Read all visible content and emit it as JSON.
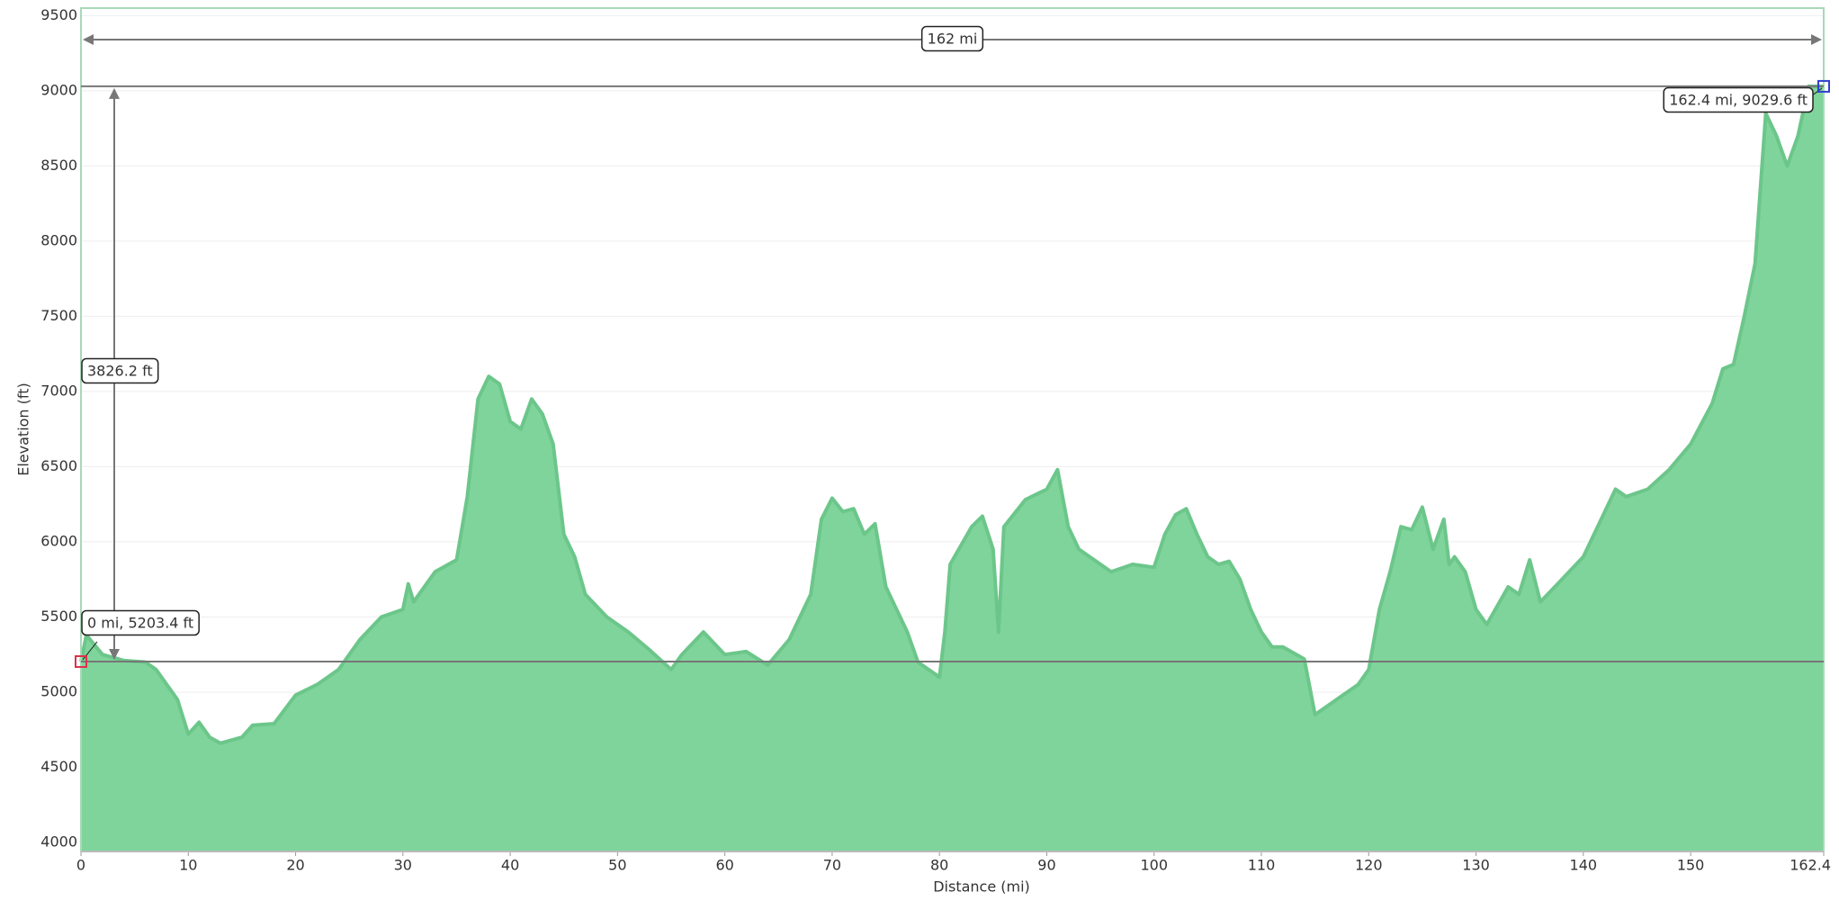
{
  "chart_data": {
    "type": "area",
    "x_label": "Distance   (mi)",
    "y_label": "Elevation (ft)",
    "color": "#7fd49b",
    "line_color": "#6cc68a",
    "x": [
      0,
      0.5,
      2,
      4,
      6,
      7,
      9,
      10,
      11,
      12,
      13,
      15,
      16,
      18,
      20,
      22,
      24,
      26,
      28,
      30,
      30.5,
      31,
      33,
      35,
      36,
      37,
      38,
      39,
      40,
      41,
      42,
      43,
      44,
      45,
      46,
      47,
      49,
      51,
      53,
      55,
      56,
      58,
      60,
      62,
      64,
      66,
      68,
      69,
      70,
      71,
      72,
      73,
      74,
      75,
      77,
      78,
      80,
      80.5,
      81,
      83,
      84,
      85,
      85.5,
      86,
      88,
      90,
      91,
      92,
      93,
      94,
      96,
      98,
      100,
      101,
      102,
      103,
      104,
      105,
      106,
      107,
      108,
      109,
      110,
      111,
      112,
      114,
      115,
      117,
      119,
      120,
      121,
      122,
      123,
      124,
      125,
      126,
      127,
      127.5,
      128,
      129,
      130,
      131,
      133,
      134,
      135,
      136,
      138,
      140,
      142,
      143,
      144,
      146,
      148,
      150,
      152,
      153,
      154,
      155,
      156,
      157,
      158,
      159,
      160,
      161,
      162.4
    ],
    "values": [
      5203.4,
      5380,
      5250,
      5210,
      5200,
      5150,
      4950,
      4720,
      4800,
      4700,
      4660,
      4700,
      4780,
      4790,
      4980,
      5050,
      5150,
      5350,
      5500,
      5550,
      5720,
      5600,
      5800,
      5880,
      6300,
      6950,
      7100,
      7050,
      6800,
      6750,
      6950,
      6850,
      6650,
      6050,
      5900,
      5650,
      5500,
      5400,
      5280,
      5150,
      5250,
      5400,
      5250,
      5270,
      5180,
      5350,
      5650,
      6150,
      6290,
      6200,
      6220,
      6050,
      6120,
      5700,
      5400,
      5200,
      5100,
      5400,
      5850,
      6100,
      6170,
      5950,
      5400,
      6100,
      6280,
      6350,
      6480,
      6100,
      5950,
      5900,
      5800,
      5850,
      5830,
      6050,
      6180,
      6220,
      6050,
      5900,
      5850,
      5870,
      5750,
      5550,
      5400,
      5300,
      5300,
      5220,
      4850,
      4950,
      5050,
      5150,
      5550,
      5800,
      6100,
      6080,
      6230,
      5950,
      6150,
      5850,
      5900,
      5800,
      5550,
      5450,
      5700,
      5650,
      5880,
      5600,
      5750,
      5900,
      6200,
      6350,
      6300,
      6350,
      6480,
      6650,
      6920,
      7150,
      7180,
      7500,
      7850,
      8850,
      8700,
      8500,
      8700,
      9030,
      9029.6
    ],
    "xlim": [
      0,
      162.4
    ],
    "ylim": [
      3940,
      9550
    ],
    "xticks": [
      0,
      10,
      20,
      30,
      40,
      50,
      60,
      70,
      80,
      90,
      100,
      110,
      120,
      130,
      140,
      150,
      162.4
    ],
    "yticks": [
      4000,
      4500,
      5000,
      5500,
      6000,
      6500,
      7000,
      7500,
      8000,
      8500,
      9000,
      9500
    ],
    "grid": true,
    "start": {
      "x": 0,
      "y": 5203.4,
      "label": "0 mi, 5203.4 ft",
      "color": "#e0304a"
    },
    "end": {
      "x": 162.4,
      "y": 9029.6,
      "label": "162.4 mi, 9029.6 ft",
      "color": "#3040d0"
    },
    "span_label": "162 mi",
    "rise_label": "3826.2 ft"
  }
}
